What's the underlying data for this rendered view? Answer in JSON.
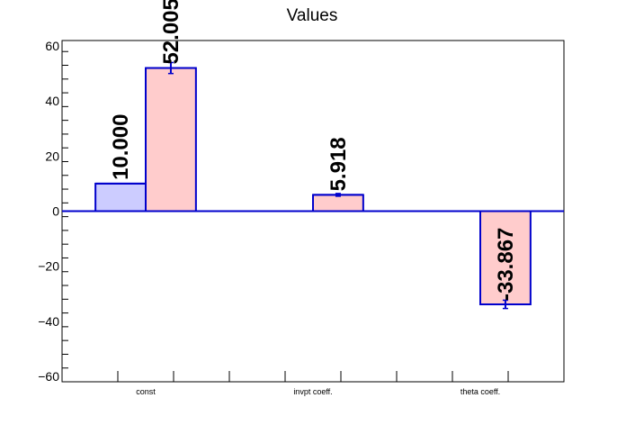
{
  "chart_data": {
    "type": "bar",
    "title": "Values",
    "categories": [
      "const",
      "invpt coeff.",
      "theta coeff."
    ],
    "xlabel": "",
    "ylabel": "",
    "ylim": [
      -62,
      62
    ],
    "yticks": [
      -60,
      -40,
      -20,
      0,
      20,
      40,
      60
    ],
    "ytick_labels": [
      "−60",
      "−40",
      "−20",
      "0",
      "20",
      "40",
      "60"
    ],
    "grid": false,
    "legend": "none",
    "series": [
      {
        "color_fill": "#ccccff",
        "color_edge": "#0000cc",
        "values": [
          10.0,
          null,
          null
        ],
        "errors": [
          0,
          null,
          null
        ],
        "labels": [
          "10.000",
          "",
          ""
        ]
      },
      {
        "color_fill": "#ffcccc",
        "color_edge": "#0000cc",
        "values": [
          52.005,
          5.918,
          -33.867
        ],
        "errors": [
          2.0,
          0.5,
          1.5
        ],
        "labels": [
          "52.005",
          "5.918",
          "-33.867"
        ]
      }
    ]
  }
}
